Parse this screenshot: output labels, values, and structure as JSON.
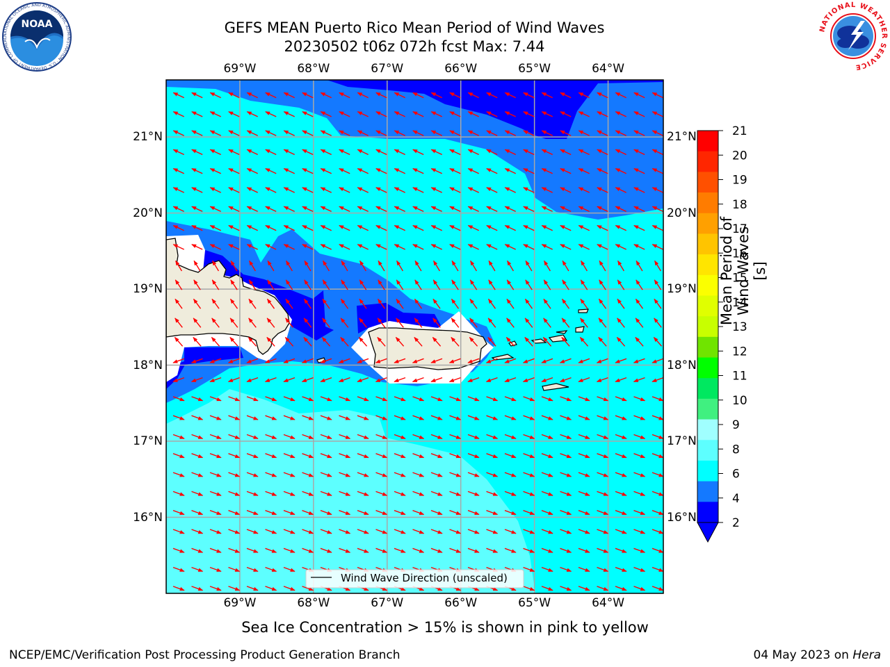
{
  "title": {
    "line1": "GEFS MEAN Puerto Rico Mean Period of Wind Waves",
    "line2": "20230502 t06z 072h fcst   Max: 7.44"
  },
  "map": {
    "lon_range": [
      -70,
      -63.25
    ],
    "lat_range": [
      15,
      21.75
    ],
    "lon_ticks": [
      "69°W",
      "68°W",
      "67°W",
      "66°W",
      "65°W",
      "64°W"
    ],
    "lat_ticks": [
      "21°N",
      "20°N",
      "19°N",
      "18°N",
      "17°N",
      "16°N"
    ],
    "grid": true,
    "legend": "Wind Wave Direction (unscaled)",
    "vector_direction": "toward west-northwest in north, west-southwest near islands, toward east-southeast in south",
    "colors": {
      "land": "#efecdc",
      "lt_2": "#0000ff",
      "2_4": "#1479ff",
      "4_6": "#00ffff",
      "6_8": "#5dffff",
      "arrow": "#ff0000"
    }
  },
  "colorbar": {
    "label": "Mean Period of Wind Waves [s]",
    "ticks": [
      "21",
      "20",
      "19",
      "18",
      "17",
      "16",
      "15",
      "14",
      "13",
      "12",
      "11",
      "10",
      "9",
      "8",
      "6",
      "4",
      "2"
    ],
    "colors": [
      "#ff0000",
      "#ff2600",
      "#ff5000",
      "#ff7c00",
      "#ffa000",
      "#ffc400",
      "#ffe500",
      "#fbff00",
      "#e0ff00",
      "#c8ff00",
      "#70e400",
      "#00ff00",
      "#00e860",
      "#40f080",
      "#a0ffff",
      "#5dffff",
      "#00ffff",
      "#1479ff",
      "#0000ff"
    ]
  },
  "subtitle": "Sea Ice Concentration > 15% is shown in pink to yellow",
  "footer": {
    "left": "NCEP/EMC/Verification Post Processing Product Generation Branch",
    "date": "04 May 2023 on ",
    "host": "Hera"
  },
  "logos": {
    "noaa": "NOAA",
    "noaa_ring": "NATIONAL OCEANIC AND ATMOSPHERIC ADMINISTRATION · U.S. DEPARTMENT OF COMMERCE",
    "nws_ring": "NATIONAL WEATHER SERVICE"
  }
}
